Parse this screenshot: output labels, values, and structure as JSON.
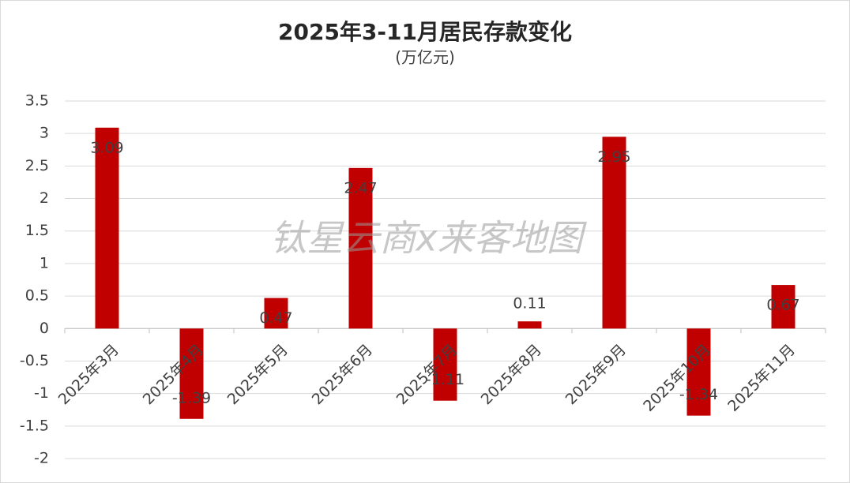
{
  "chart_data": {
    "type": "bar",
    "title": "2025年3-11月居民存款变化",
    "subtitle": "(万亿元)",
    "annotation": "钛星云商x来客地图",
    "categories": [
      "2025年3月",
      "2025年4月",
      "2025年5月",
      "2025年6月",
      "2025年7月",
      "2025年8月",
      "2025年9月",
      "2025年10月",
      "2025年11月"
    ],
    "values": [
      3.09,
      -1.39,
      0.47,
      2.47,
      -1.11,
      0.11,
      2.95,
      -1.34,
      0.67
    ],
    "color": "#c00000",
    "ylim": [
      -2,
      3.5
    ],
    "yticks": [
      3.5,
      3,
      2.5,
      2,
      1.5,
      1,
      0.5,
      0,
      -0.5,
      -1,
      -1.5,
      -2
    ],
    "grid": true
  }
}
